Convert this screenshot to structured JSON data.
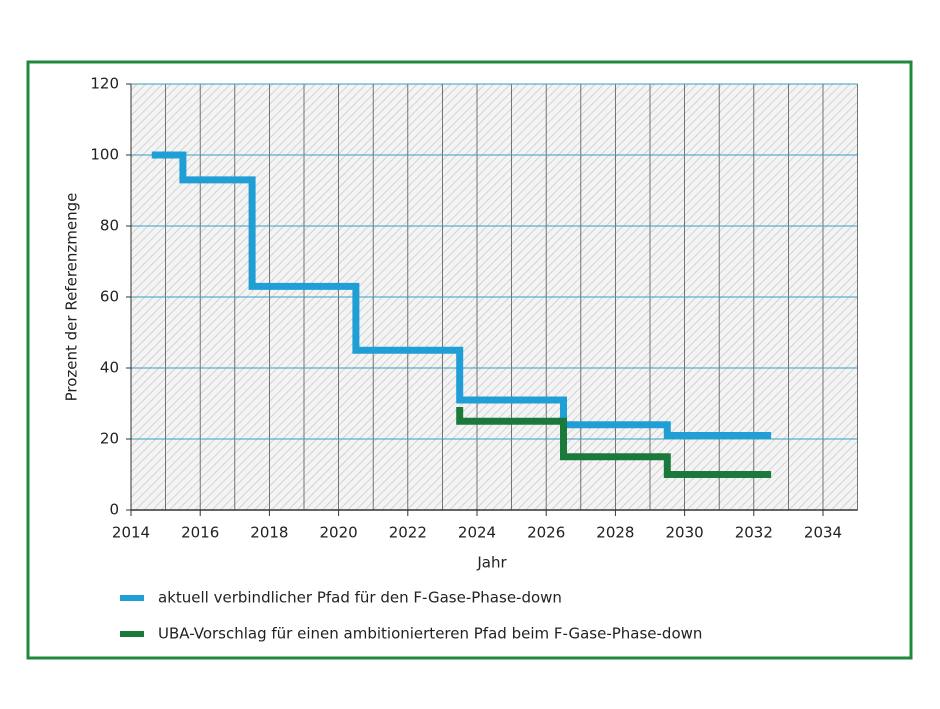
{
  "chart_data": {
    "type": "line",
    "x_label": "Jahr",
    "y_label": "Prozent der Referenzmenge",
    "xlim": [
      2014,
      2035
    ],
    "xticks": [
      2014,
      2016,
      2018,
      2020,
      2022,
      2024,
      2026,
      2028,
      2030,
      2032,
      2034
    ],
    "ylim": [
      0,
      120
    ],
    "yticks": [
      0,
      20,
      40,
      60,
      80,
      100,
      120
    ],
    "grid": true,
    "series": [
      {
        "name": "aktuell verbindlicher Pfad für den F-Gase-Phase-down",
        "color": "#1f9fd6",
        "x": [
          2014.6,
          2015.5,
          2015.5,
          2017.5,
          2017.5,
          2020.5,
          2020.5,
          2023.5,
          2023.5,
          2026.5,
          2026.5,
          2029.5,
          2029.5,
          2032.5
        ],
        "values": [
          100,
          100,
          93,
          93,
          63,
          63,
          45,
          45,
          31,
          31,
          24,
          24,
          21,
          21
        ]
      },
      {
        "name": "UBA-Vorschlag für einen ambitionierteren Pfad beim F-Gase-Phase-down",
        "color": "#1a7a3c",
        "x": [
          2023.5,
          2023.5,
          2026.5,
          2026.5,
          2029.5,
          2029.5,
          2032.5
        ],
        "values": [
          29,
          25,
          25,
          15,
          15,
          10,
          10
        ]
      }
    ]
  }
}
